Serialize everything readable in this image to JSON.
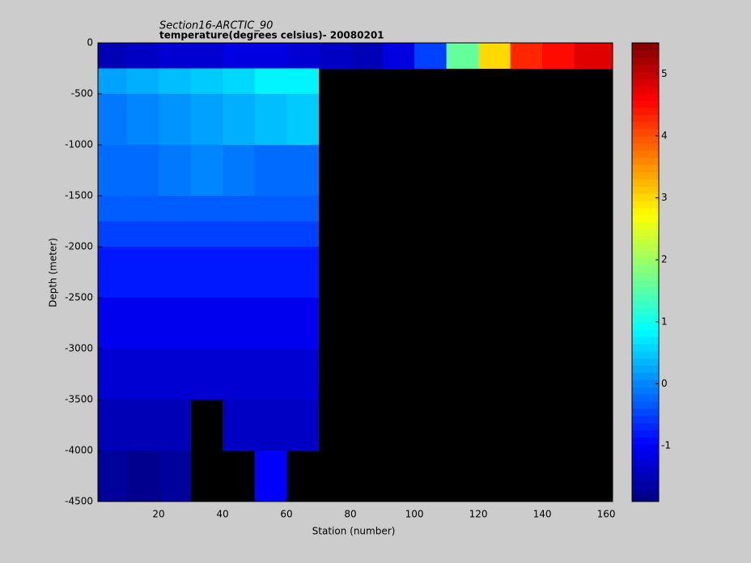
{
  "chart_data": {
    "type": "heatmap",
    "title": "Section16-ARCTIC_90",
    "subtitle": "temperature(degrees  celsius)- 20080201",
    "x_label": "Station (number)",
    "y_label": "Depth (meter)",
    "x_edges": [
      1,
      10,
      20,
      30,
      40,
      50,
      60,
      70,
      80,
      90,
      100,
      110,
      120,
      130,
      140,
      150,
      162
    ],
    "y_edges": [
      0,
      -250,
      -500,
      -1000,
      -1500,
      -1750,
      -2000,
      -2500,
      -3000,
      -3500,
      -4000,
      -4500
    ],
    "values": [
      [
        -1.5,
        -1.4,
        -1.3,
        -1.3,
        -1.2,
        -1.2,
        -1.3,
        -1.4,
        -1.5,
        -1.2,
        -0.5,
        1.6,
        3.0,
        4.3,
        4.5,
        4.8
      ],
      [
        0.2,
        0.3,
        0.4,
        0.5,
        0.6,
        0.8,
        0.8,
        null,
        null,
        null,
        null,
        null,
        null,
        null,
        null,
        null
      ],
      [
        -0.1,
        0,
        0.1,
        0.2,
        0.3,
        0.4,
        0.5,
        null,
        null,
        null,
        null,
        null,
        null,
        null,
        null,
        null
      ],
      [
        -0.2,
        -0.2,
        -0.1,
        0,
        -0.1,
        -0.2,
        -0.2,
        null,
        null,
        null,
        null,
        null,
        null,
        null,
        null,
        null
      ],
      [
        -0.3,
        -0.3,
        -0.3,
        -0.3,
        -0.3,
        -0.3,
        -0.3,
        null,
        null,
        null,
        null,
        null,
        null,
        null,
        null,
        null
      ],
      [
        -0.5,
        -0.5,
        -0.5,
        -0.5,
        -0.5,
        -0.5,
        -0.5,
        null,
        null,
        null,
        null,
        null,
        null,
        null,
        null,
        null
      ],
      [
        -0.8,
        -0.8,
        -0.8,
        -0.8,
        -0.8,
        -0.8,
        -0.8,
        null,
        null,
        null,
        null,
        null,
        null,
        null,
        null,
        null
      ],
      [
        -1.1,
        -1.1,
        -1.1,
        -1.1,
        -1.1,
        -1.1,
        -1.1,
        null,
        null,
        null,
        null,
        null,
        null,
        null,
        null,
        null
      ],
      [
        -1.3,
        -1.3,
        -1.3,
        -1.3,
        -1.3,
        -1.3,
        -1.3,
        null,
        null,
        null,
        null,
        null,
        null,
        null,
        null,
        null
      ],
      [
        -1.5,
        -1.5,
        -1.5,
        null,
        -1.4,
        -1.4,
        -1.4,
        null,
        null,
        null,
        null,
        null,
        null,
        null,
        null,
        null
      ],
      [
        -1.7,
        -1.8,
        -1.7,
        null,
        null,
        -1.0,
        null,
        null,
        null,
        null,
        null,
        null,
        null,
        null,
        null,
        null
      ]
    ],
    "xlim": [
      1,
      162
    ],
    "xticks": [
      20,
      40,
      60,
      80,
      100,
      120,
      140,
      160
    ],
    "ylim": [
      -4500,
      0
    ],
    "yticks": [
      0,
      -500,
      -1000,
      -1500,
      -2000,
      -2500,
      -3000,
      -3500,
      -4000,
      -4500
    ],
    "clim": [
      -1.9,
      5.5
    ],
    "cticks": [
      -1,
      0,
      1,
      2,
      3,
      4,
      5
    ]
  }
}
